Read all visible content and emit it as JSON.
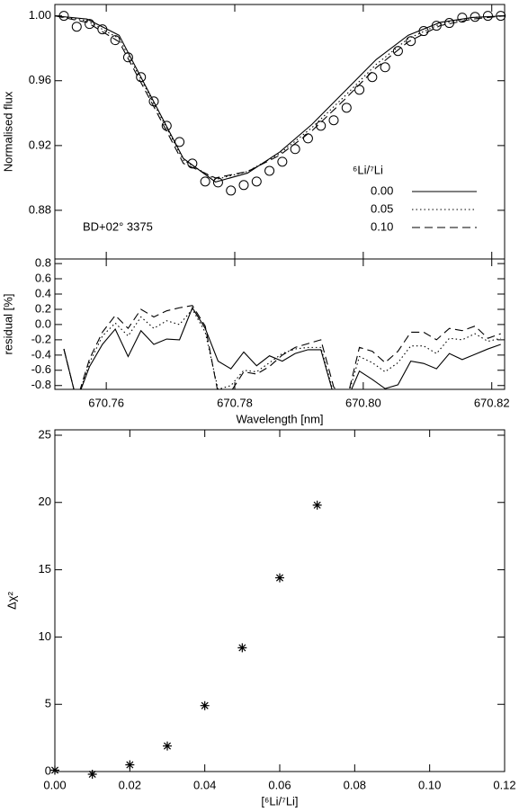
{
  "chart_data": [
    {
      "type": "line",
      "ylabel": "Normalised flux",
      "annotation": "BD+02° 3375",
      "legend_title": "⁶Li/⁷Li",
      "x": [
        670.752,
        670.757,
        670.762,
        670.767,
        670.772,
        670.777,
        670.782,
        670.787,
        670.792,
        670.797,
        670.802,
        670.807,
        670.812,
        670.817,
        670.822
      ],
      "series": [
        {
          "name": "0.00",
          "color": "#000000",
          "linestyle": "solid",
          "values": [
            1.0,
            0.998,
            0.988,
            0.95,
            0.912,
            0.8975,
            0.903,
            0.916,
            0.933,
            0.953,
            0.973,
            0.988,
            0.996,
            0.999,
            1.0
          ]
        },
        {
          "name": "0.05",
          "color": "#000000",
          "linestyle": "dotted",
          "values": [
            1.0,
            0.997,
            0.986,
            0.949,
            0.911,
            0.899,
            0.904,
            0.915,
            0.931,
            0.95,
            0.97,
            0.986,
            0.995,
            0.999,
            1.0
          ]
        },
        {
          "name": "0.10",
          "color": "#000000",
          "linestyle": "dashed",
          "values": [
            1.0,
            0.996,
            0.984,
            0.947,
            0.909,
            0.9,
            0.904,
            0.914,
            0.929,
            0.948,
            0.968,
            0.984,
            0.994,
            0.998,
            1.0
          ]
        }
      ],
      "observed": {
        "color": "#000000",
        "x": [
          670.7534,
          670.7554,
          670.7574,
          670.7594,
          670.7614,
          670.7634,
          670.7654,
          670.7674,
          670.7694,
          670.7714,
          670.7734,
          670.7754,
          670.7774,
          670.7794,
          670.7814,
          670.7834,
          670.7854,
          670.7874,
          670.7894,
          670.7914,
          670.7934,
          670.7954,
          670.7974,
          670.7994,
          670.8014,
          670.8034,
          670.8054,
          670.8074,
          670.8094,
          670.8114,
          670.8134,
          670.8154,
          670.8174,
          670.8194,
          670.8214
        ],
        "values": [
          1.0,
          0.9933,
          0.995,
          0.9917,
          0.985,
          0.9744,
          0.9622,
          0.9472,
          0.9322,
          0.9222,
          0.9089,
          0.8978,
          0.8972,
          0.8922,
          0.8956,
          0.8978,
          0.9044,
          0.91,
          0.9178,
          0.9244,
          0.9322,
          0.9356,
          0.9433,
          0.9544,
          0.9622,
          0.9683,
          0.9783,
          0.9844,
          0.9906,
          0.9939,
          0.9956,
          0.9989,
          0.9994,
          1.0,
          1.0
        ]
      },
      "xlim": [
        670.752,
        670.822
      ],
      "ylim": [
        0.85,
        1.007
      ],
      "xticks": [
        670.76,
        670.78,
        670.8,
        670.82
      ],
      "yticks": [
        0.88,
        0.92,
        0.96,
        {
          "value": 1.0,
          "label": "1.00"
        }
      ]
    },
    {
      "type": "line",
      "ylabel": "residual [%]",
      "xlabel": "Wavelength [nm]",
      "x": [
        670.7534,
        670.7554,
        670.7574,
        670.7594,
        670.7614,
        670.7634,
        670.7654,
        670.7674,
        670.7694,
        670.7714,
        670.7734,
        670.7754,
        670.7774,
        670.7794,
        670.7814,
        670.7834,
        670.7854,
        670.7874,
        670.7894,
        670.7914,
        670.7934,
        670.7954,
        670.7974,
        670.7994,
        670.8014,
        670.8034,
        670.8054,
        670.8074,
        670.8094,
        670.8114,
        670.8134,
        670.8154,
        670.8174,
        670.8194,
        670.8214
      ],
      "series": [
        {
          "color": "#000000",
          "linestyle": "solid",
          "values": [
            -0.32,
            -1.0,
            -0.55,
            -0.26,
            -0.06,
            -0.42,
            -0.08,
            -0.26,
            -0.19,
            -0.2,
            0.22,
            -0.05,
            -0.48,
            -0.58,
            -0.36,
            -0.54,
            -0.41,
            -0.48,
            -0.38,
            -0.33,
            -0.33,
            -0.93,
            -1.0,
            -0.61,
            -0.72,
            -0.84,
            -0.79,
            -0.48,
            -0.51,
            -0.58,
            -0.38,
            -0.46,
            -0.39,
            -0.32,
            -0.26
          ]
        },
        {
          "color": "#000000",
          "linestyle": "dotted",
          "values": [
            -0.32,
            -1.0,
            -0.5,
            -0.15,
            0.02,
            -0.15,
            0.1,
            -0.05,
            0.05,
            0.0,
            0.2,
            -0.1,
            -0.85,
            -0.8,
            -0.6,
            -0.62,
            -0.5,
            -0.38,
            -0.32,
            -0.3,
            -0.3,
            -0.9,
            -1.0,
            -0.42,
            -0.5,
            -0.62,
            -0.5,
            -0.28,
            -0.28,
            -0.38,
            -0.18,
            -0.2,
            -0.12,
            -0.22,
            -0.18
          ]
        },
        {
          "color": "#000000",
          "linestyle": "dashed",
          "values": [
            -0.32,
            -1.0,
            -0.45,
            -0.1,
            0.12,
            -0.05,
            0.2,
            0.1,
            0.18,
            0.22,
            0.25,
            -0.02,
            -0.9,
            -0.88,
            -0.62,
            -0.65,
            -0.55,
            -0.4,
            -0.3,
            -0.25,
            -0.2,
            -0.82,
            -1.0,
            -0.3,
            -0.35,
            -0.5,
            -0.35,
            -0.1,
            -0.1,
            -0.2,
            -0.05,
            -0.08,
            -0.02,
            -0.18,
            -0.12
          ]
        }
      ],
      "xlim": [
        670.752,
        670.822
      ],
      "ylim": [
        -0.85,
        0.86
      ],
      "xticks": [
        670.76,
        670.78,
        {
          "value": 670.8,
          "label": "670.80"
        },
        670.82
      ],
      "yticks": [
        -0.8,
        -0.6,
        -0.4,
        -0.2,
        {
          "value": 0,
          "label": "0.0"
        },
        0.2,
        0.4,
        0.6,
        0.8
      ]
    },
    {
      "type": "scatter",
      "ylabel": "Δχ²",
      "xlabel": "[⁶Li/⁷Li]",
      "color": "#000000",
      "x": [
        0.0,
        0.01,
        0.02,
        0.03,
        0.04,
        0.05,
        0.06,
        0.07
      ],
      "values": [
        0.1,
        -0.2,
        0.5,
        1.9,
        4.9,
        9.2,
        14.4,
        19.8
      ],
      "xlim": [
        0,
        0.12
      ],
      "ylim": [
        0,
        25.4
      ],
      "xticks": [
        {
          "value": 0,
          "label": "0.00"
        },
        0.02,
        0.04,
        0.06,
        0.08,
        {
          "value": 0.1,
          "label": "0.10"
        },
        0.12
      ],
      "yticks": [
        0,
        5,
        10,
        15,
        20,
        25
      ]
    }
  ]
}
